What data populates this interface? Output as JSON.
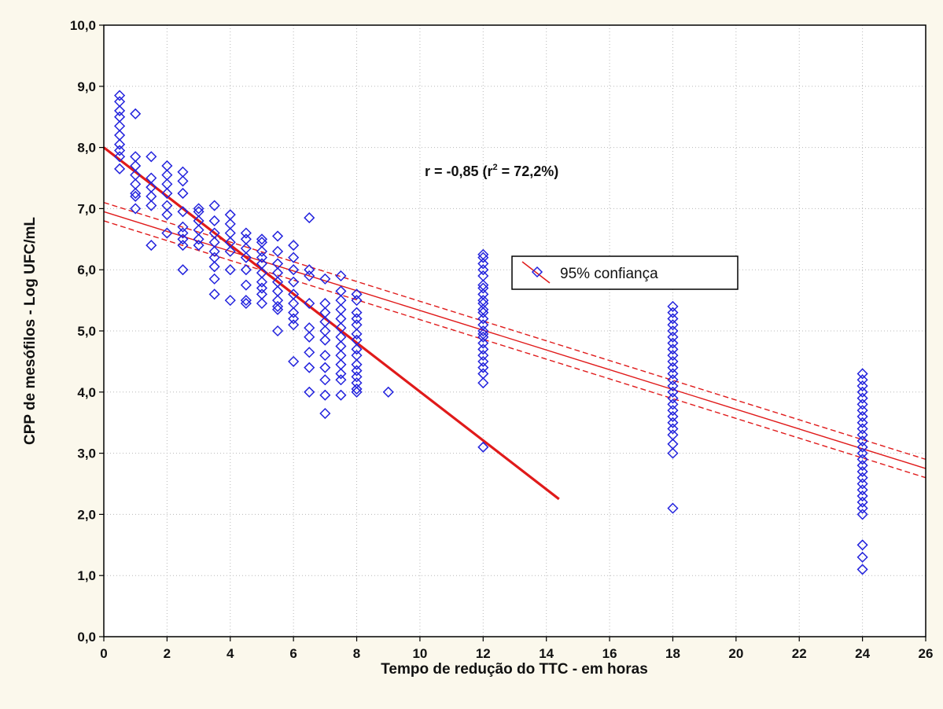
{
  "chart_data": {
    "type": "scatter",
    "xlabel": "Tempo de redução do TTC - em horas",
    "ylabel": "CPP de mesófilos - Log UFC/mL",
    "xlim": [
      0,
      26
    ],
    "ylim": [
      0,
      10
    ],
    "xticks": [
      "0",
      "2",
      "4",
      "6",
      "8",
      "10",
      "12",
      "14",
      "16",
      "18",
      "20",
      "22",
      "24",
      "26"
    ],
    "yticks": [
      "0,0",
      "1,0",
      "2,0",
      "3,0",
      "4,0",
      "5,0",
      "6,0",
      "7,0",
      "8,0",
      "9,0",
      "10,0"
    ],
    "grid": true,
    "annotation": {
      "prefix": "r = -0,85 (r",
      "sup": "2",
      "suffix": " = 72,2%)"
    },
    "legend": {
      "label": "95% confiança",
      "position": "center-right"
    },
    "colors": {
      "points": "#2222dd",
      "lines": "#e01a1a",
      "grid": "#b8b8b8",
      "plot_bg": "#ffffff",
      "page_bg": "#fbf8ec"
    },
    "series": [
      {
        "type": "scatter",
        "marker": "diamond",
        "points": [
          {
            "x": 0.5,
            "y": 8.85
          },
          {
            "x": 0.5,
            "y": 8.75
          },
          {
            "x": 0.5,
            "y": 8.6
          },
          {
            "x": 0.5,
            "y": 8.5
          },
          {
            "x": 0.5,
            "y": 8.35
          },
          {
            "x": 0.5,
            "y": 8.2
          },
          {
            "x": 0.5,
            "y": 8.05
          },
          {
            "x": 0.5,
            "y": 7.95
          },
          {
            "x": 0.5,
            "y": 7.85
          },
          {
            "x": 0.5,
            "y": 7.65
          },
          {
            "x": 1,
            "y": 8.55
          },
          {
            "x": 1,
            "y": 7.85
          },
          {
            "x": 1,
            "y": 7.7
          },
          {
            "x": 1,
            "y": 7.55
          },
          {
            "x": 1,
            "y": 7.4
          },
          {
            "x": 1,
            "y": 7.25
          },
          {
            "x": 1,
            "y": 7.2
          },
          {
            "x": 1,
            "y": 7.0
          },
          {
            "x": 1.5,
            "y": 7.85
          },
          {
            "x": 1.5,
            "y": 7.5
          },
          {
            "x": 1.5,
            "y": 7.35
          },
          {
            "x": 1.5,
            "y": 7.2
          },
          {
            "x": 1.5,
            "y": 7.05
          },
          {
            "x": 1.5,
            "y": 6.4
          },
          {
            "x": 2,
            "y": 7.7
          },
          {
            "x": 2,
            "y": 7.55
          },
          {
            "x": 2,
            "y": 7.4
          },
          {
            "x": 2,
            "y": 7.25
          },
          {
            "x": 2,
            "y": 7.05
          },
          {
            "x": 2,
            "y": 6.9
          },
          {
            "x": 2,
            "y": 6.6
          },
          {
            "x": 2.5,
            "y": 7.6
          },
          {
            "x": 2.5,
            "y": 7.45
          },
          {
            "x": 2.5,
            "y": 7.25
          },
          {
            "x": 2.5,
            "y": 6.95
          },
          {
            "x": 2.5,
            "y": 6.7
          },
          {
            "x": 2.5,
            "y": 6.6
          },
          {
            "x": 2.5,
            "y": 6.5
          },
          {
            "x": 2.5,
            "y": 6.4
          },
          {
            "x": 2.5,
            "y": 6.0
          },
          {
            "x": 3,
            "y": 7.0
          },
          {
            "x": 3,
            "y": 6.95
          },
          {
            "x": 3,
            "y": 6.8
          },
          {
            "x": 3,
            "y": 6.65
          },
          {
            "x": 3,
            "y": 6.5
          },
          {
            "x": 3,
            "y": 6.4
          },
          {
            "x": 3.5,
            "y": 7.05
          },
          {
            "x": 3.5,
            "y": 6.8
          },
          {
            "x": 3.5,
            "y": 6.6
          },
          {
            "x": 3.5,
            "y": 6.45
          },
          {
            "x": 3.5,
            "y": 6.3
          },
          {
            "x": 3.5,
            "y": 6.2
          },
          {
            "x": 3.5,
            "y": 6.05
          },
          {
            "x": 3.5,
            "y": 5.85
          },
          {
            "x": 3.5,
            "y": 5.6
          },
          {
            "x": 4,
            "y": 6.9
          },
          {
            "x": 4,
            "y": 6.75
          },
          {
            "x": 4,
            "y": 6.6
          },
          {
            "x": 4,
            "y": 6.45
          },
          {
            "x": 4,
            "y": 6.3
          },
          {
            "x": 4,
            "y": 6.0
          },
          {
            "x": 4,
            "y": 5.5
          },
          {
            "x": 4.5,
            "y": 6.6
          },
          {
            "x": 4.5,
            "y": 6.5
          },
          {
            "x": 4.5,
            "y": 6.35
          },
          {
            "x": 4.5,
            "y": 6.2
          },
          {
            "x": 4.5,
            "y": 6.0
          },
          {
            "x": 4.5,
            "y": 5.75
          },
          {
            "x": 4.5,
            "y": 5.5
          },
          {
            "x": 4.5,
            "y": 5.45
          },
          {
            "x": 5,
            "y": 6.5
          },
          {
            "x": 5,
            "y": 6.45
          },
          {
            "x": 5,
            "y": 6.3
          },
          {
            "x": 5,
            "y": 6.2
          },
          {
            "x": 5,
            "y": 6.1
          },
          {
            "x": 5,
            "y": 5.95
          },
          {
            "x": 5,
            "y": 5.8
          },
          {
            "x": 5,
            "y": 5.7
          },
          {
            "x": 5,
            "y": 5.6
          },
          {
            "x": 5,
            "y": 5.45
          },
          {
            "x": 5.5,
            "y": 6.55
          },
          {
            "x": 5.5,
            "y": 6.3
          },
          {
            "x": 5.5,
            "y": 6.1
          },
          {
            "x": 5.5,
            "y": 5.95
          },
          {
            "x": 5.5,
            "y": 5.8
          },
          {
            "x": 5.5,
            "y": 5.65
          },
          {
            "x": 5.5,
            "y": 5.5
          },
          {
            "x": 5.5,
            "y": 5.4
          },
          {
            "x": 5.5,
            "y": 5.35
          },
          {
            "x": 5.5,
            "y": 5.0
          },
          {
            "x": 6,
            "y": 6.4
          },
          {
            "x": 6,
            "y": 6.2
          },
          {
            "x": 6,
            "y": 6.0
          },
          {
            "x": 6,
            "y": 5.8
          },
          {
            "x": 6,
            "y": 5.6
          },
          {
            "x": 6,
            "y": 5.45
          },
          {
            "x": 6,
            "y": 5.3
          },
          {
            "x": 6,
            "y": 5.2
          },
          {
            "x": 6,
            "y": 5.1
          },
          {
            "x": 6,
            "y": 4.5
          },
          {
            "x": 6.5,
            "y": 6.85
          },
          {
            "x": 6.5,
            "y": 6.0
          },
          {
            "x": 6.5,
            "y": 5.9
          },
          {
            "x": 6.5,
            "y": 5.45
          },
          {
            "x": 6.5,
            "y": 5.05
          },
          {
            "x": 6.5,
            "y": 4.9
          },
          {
            "x": 6.5,
            "y": 4.65
          },
          {
            "x": 6.5,
            "y": 4.4
          },
          {
            "x": 6.5,
            "y": 4.0
          },
          {
            "x": 7,
            "y": 5.85
          },
          {
            "x": 7,
            "y": 5.45
          },
          {
            "x": 7,
            "y": 5.3
          },
          {
            "x": 7,
            "y": 5.15
          },
          {
            "x": 7,
            "y": 5.0
          },
          {
            "x": 7,
            "y": 4.85
          },
          {
            "x": 7,
            "y": 4.6
          },
          {
            "x": 7,
            "y": 4.4
          },
          {
            "x": 7,
            "y": 4.2
          },
          {
            "x": 7,
            "y": 3.95
          },
          {
            "x": 7,
            "y": 3.65
          },
          {
            "x": 7.5,
            "y": 5.9
          },
          {
            "x": 7.5,
            "y": 5.65
          },
          {
            "x": 7.5,
            "y": 5.5
          },
          {
            "x": 7.5,
            "y": 5.35
          },
          {
            "x": 7.5,
            "y": 5.2
          },
          {
            "x": 7.5,
            "y": 5.05
          },
          {
            "x": 7.5,
            "y": 4.9
          },
          {
            "x": 7.5,
            "y": 4.75
          },
          {
            "x": 7.5,
            "y": 4.6
          },
          {
            "x": 7.5,
            "y": 4.45
          },
          {
            "x": 7.5,
            "y": 4.3
          },
          {
            "x": 7.5,
            "y": 4.2
          },
          {
            "x": 7.5,
            "y": 3.95
          },
          {
            "x": 8,
            "y": 5.6
          },
          {
            "x": 8,
            "y": 5.5
          },
          {
            "x": 8,
            "y": 5.3
          },
          {
            "x": 8,
            "y": 5.2
          },
          {
            "x": 8,
            "y": 5.1
          },
          {
            "x": 8,
            "y": 4.95
          },
          {
            "x": 8,
            "y": 4.85
          },
          {
            "x": 8,
            "y": 4.7
          },
          {
            "x": 8,
            "y": 4.6
          },
          {
            "x": 8,
            "y": 4.45
          },
          {
            "x": 8,
            "y": 4.35
          },
          {
            "x": 8,
            "y": 4.25
          },
          {
            "x": 8,
            "y": 4.15
          },
          {
            "x": 8,
            "y": 4.05
          },
          {
            "x": 8,
            "y": 4.0
          },
          {
            "x": 9,
            "y": 4.0
          },
          {
            "x": 12,
            "y": 6.25
          },
          {
            "x": 12,
            "y": 6.2
          },
          {
            "x": 12,
            "y": 6.1
          },
          {
            "x": 12,
            "y": 6.0
          },
          {
            "x": 12,
            "y": 5.9
          },
          {
            "x": 12,
            "y": 5.75
          },
          {
            "x": 12,
            "y": 5.7
          },
          {
            "x": 12,
            "y": 5.6
          },
          {
            "x": 12,
            "y": 5.5
          },
          {
            "x": 12,
            "y": 5.45
          },
          {
            "x": 12,
            "y": 5.35
          },
          {
            "x": 12,
            "y": 5.3
          },
          {
            "x": 12,
            "y": 5.2
          },
          {
            "x": 12,
            "y": 5.1
          },
          {
            "x": 12,
            "y": 5.0
          },
          {
            "x": 12,
            "y": 4.95
          },
          {
            "x": 12,
            "y": 4.9
          },
          {
            "x": 12,
            "y": 4.8
          },
          {
            "x": 12,
            "y": 4.7
          },
          {
            "x": 12,
            "y": 4.6
          },
          {
            "x": 12,
            "y": 4.5
          },
          {
            "x": 12,
            "y": 4.4
          },
          {
            "x": 12,
            "y": 4.3
          },
          {
            "x": 12,
            "y": 4.15
          },
          {
            "x": 12,
            "y": 3.1
          },
          {
            "x": 18,
            "y": 5.4
          },
          {
            "x": 18,
            "y": 5.3
          },
          {
            "x": 18,
            "y": 5.2
          },
          {
            "x": 18,
            "y": 5.1
          },
          {
            "x": 18,
            "y": 5.0
          },
          {
            "x": 18,
            "y": 4.9
          },
          {
            "x": 18,
            "y": 4.8
          },
          {
            "x": 18,
            "y": 4.7
          },
          {
            "x": 18,
            "y": 4.6
          },
          {
            "x": 18,
            "y": 4.5
          },
          {
            "x": 18,
            "y": 4.4
          },
          {
            "x": 18,
            "y": 4.3
          },
          {
            "x": 18,
            "y": 4.2
          },
          {
            "x": 18,
            "y": 4.1
          },
          {
            "x": 18,
            "y": 4.0
          },
          {
            "x": 18,
            "y": 3.9
          },
          {
            "x": 18,
            "y": 3.8
          },
          {
            "x": 18,
            "y": 3.7
          },
          {
            "x": 18,
            "y": 3.6
          },
          {
            "x": 18,
            "y": 3.5
          },
          {
            "x": 18,
            "y": 3.4
          },
          {
            "x": 18,
            "y": 3.3
          },
          {
            "x": 18,
            "y": 3.15
          },
          {
            "x": 18,
            "y": 3.0
          },
          {
            "x": 18,
            "y": 2.1
          },
          {
            "x": 24,
            "y": 4.3
          },
          {
            "x": 24,
            "y": 4.2
          },
          {
            "x": 24,
            "y": 4.1
          },
          {
            "x": 24,
            "y": 4.0
          },
          {
            "x": 24,
            "y": 3.9
          },
          {
            "x": 24,
            "y": 3.8
          },
          {
            "x": 24,
            "y": 3.7
          },
          {
            "x": 24,
            "y": 3.6
          },
          {
            "x": 24,
            "y": 3.5
          },
          {
            "x": 24,
            "y": 3.4
          },
          {
            "x": 24,
            "y": 3.3
          },
          {
            "x": 24,
            "y": 3.2
          },
          {
            "x": 24,
            "y": 3.1
          },
          {
            "x": 24,
            "y": 3.0
          },
          {
            "x": 24,
            "y": 2.9
          },
          {
            "x": 24,
            "y": 2.8
          },
          {
            "x": 24,
            "y": 2.7
          },
          {
            "x": 24,
            "y": 2.6
          },
          {
            "x": 24,
            "y": 2.5
          },
          {
            "x": 24,
            "y": 2.4
          },
          {
            "x": 24,
            "y": 2.3
          },
          {
            "x": 24,
            "y": 2.2
          },
          {
            "x": 24,
            "y": 2.1
          },
          {
            "x": 24,
            "y": 2.0
          },
          {
            "x": 24,
            "y": 1.5
          },
          {
            "x": 24,
            "y": 1.3
          },
          {
            "x": 24,
            "y": 1.1
          }
        ]
      },
      {
        "type": "line",
        "style": "solid-bold",
        "x": [
          0,
          14.4
        ],
        "y": [
          8.0,
          2.25
        ]
      },
      {
        "type": "line",
        "style": "solid",
        "x": [
          0,
          26
        ],
        "y": [
          6.95,
          2.75
        ]
      },
      {
        "type": "line",
        "style": "dashed",
        "x": [
          0,
          26
        ],
        "y": [
          7.1,
          2.9
        ]
      },
      {
        "type": "line",
        "style": "dashed",
        "x": [
          0,
          26
        ],
        "y": [
          6.8,
          2.6
        ]
      }
    ]
  }
}
